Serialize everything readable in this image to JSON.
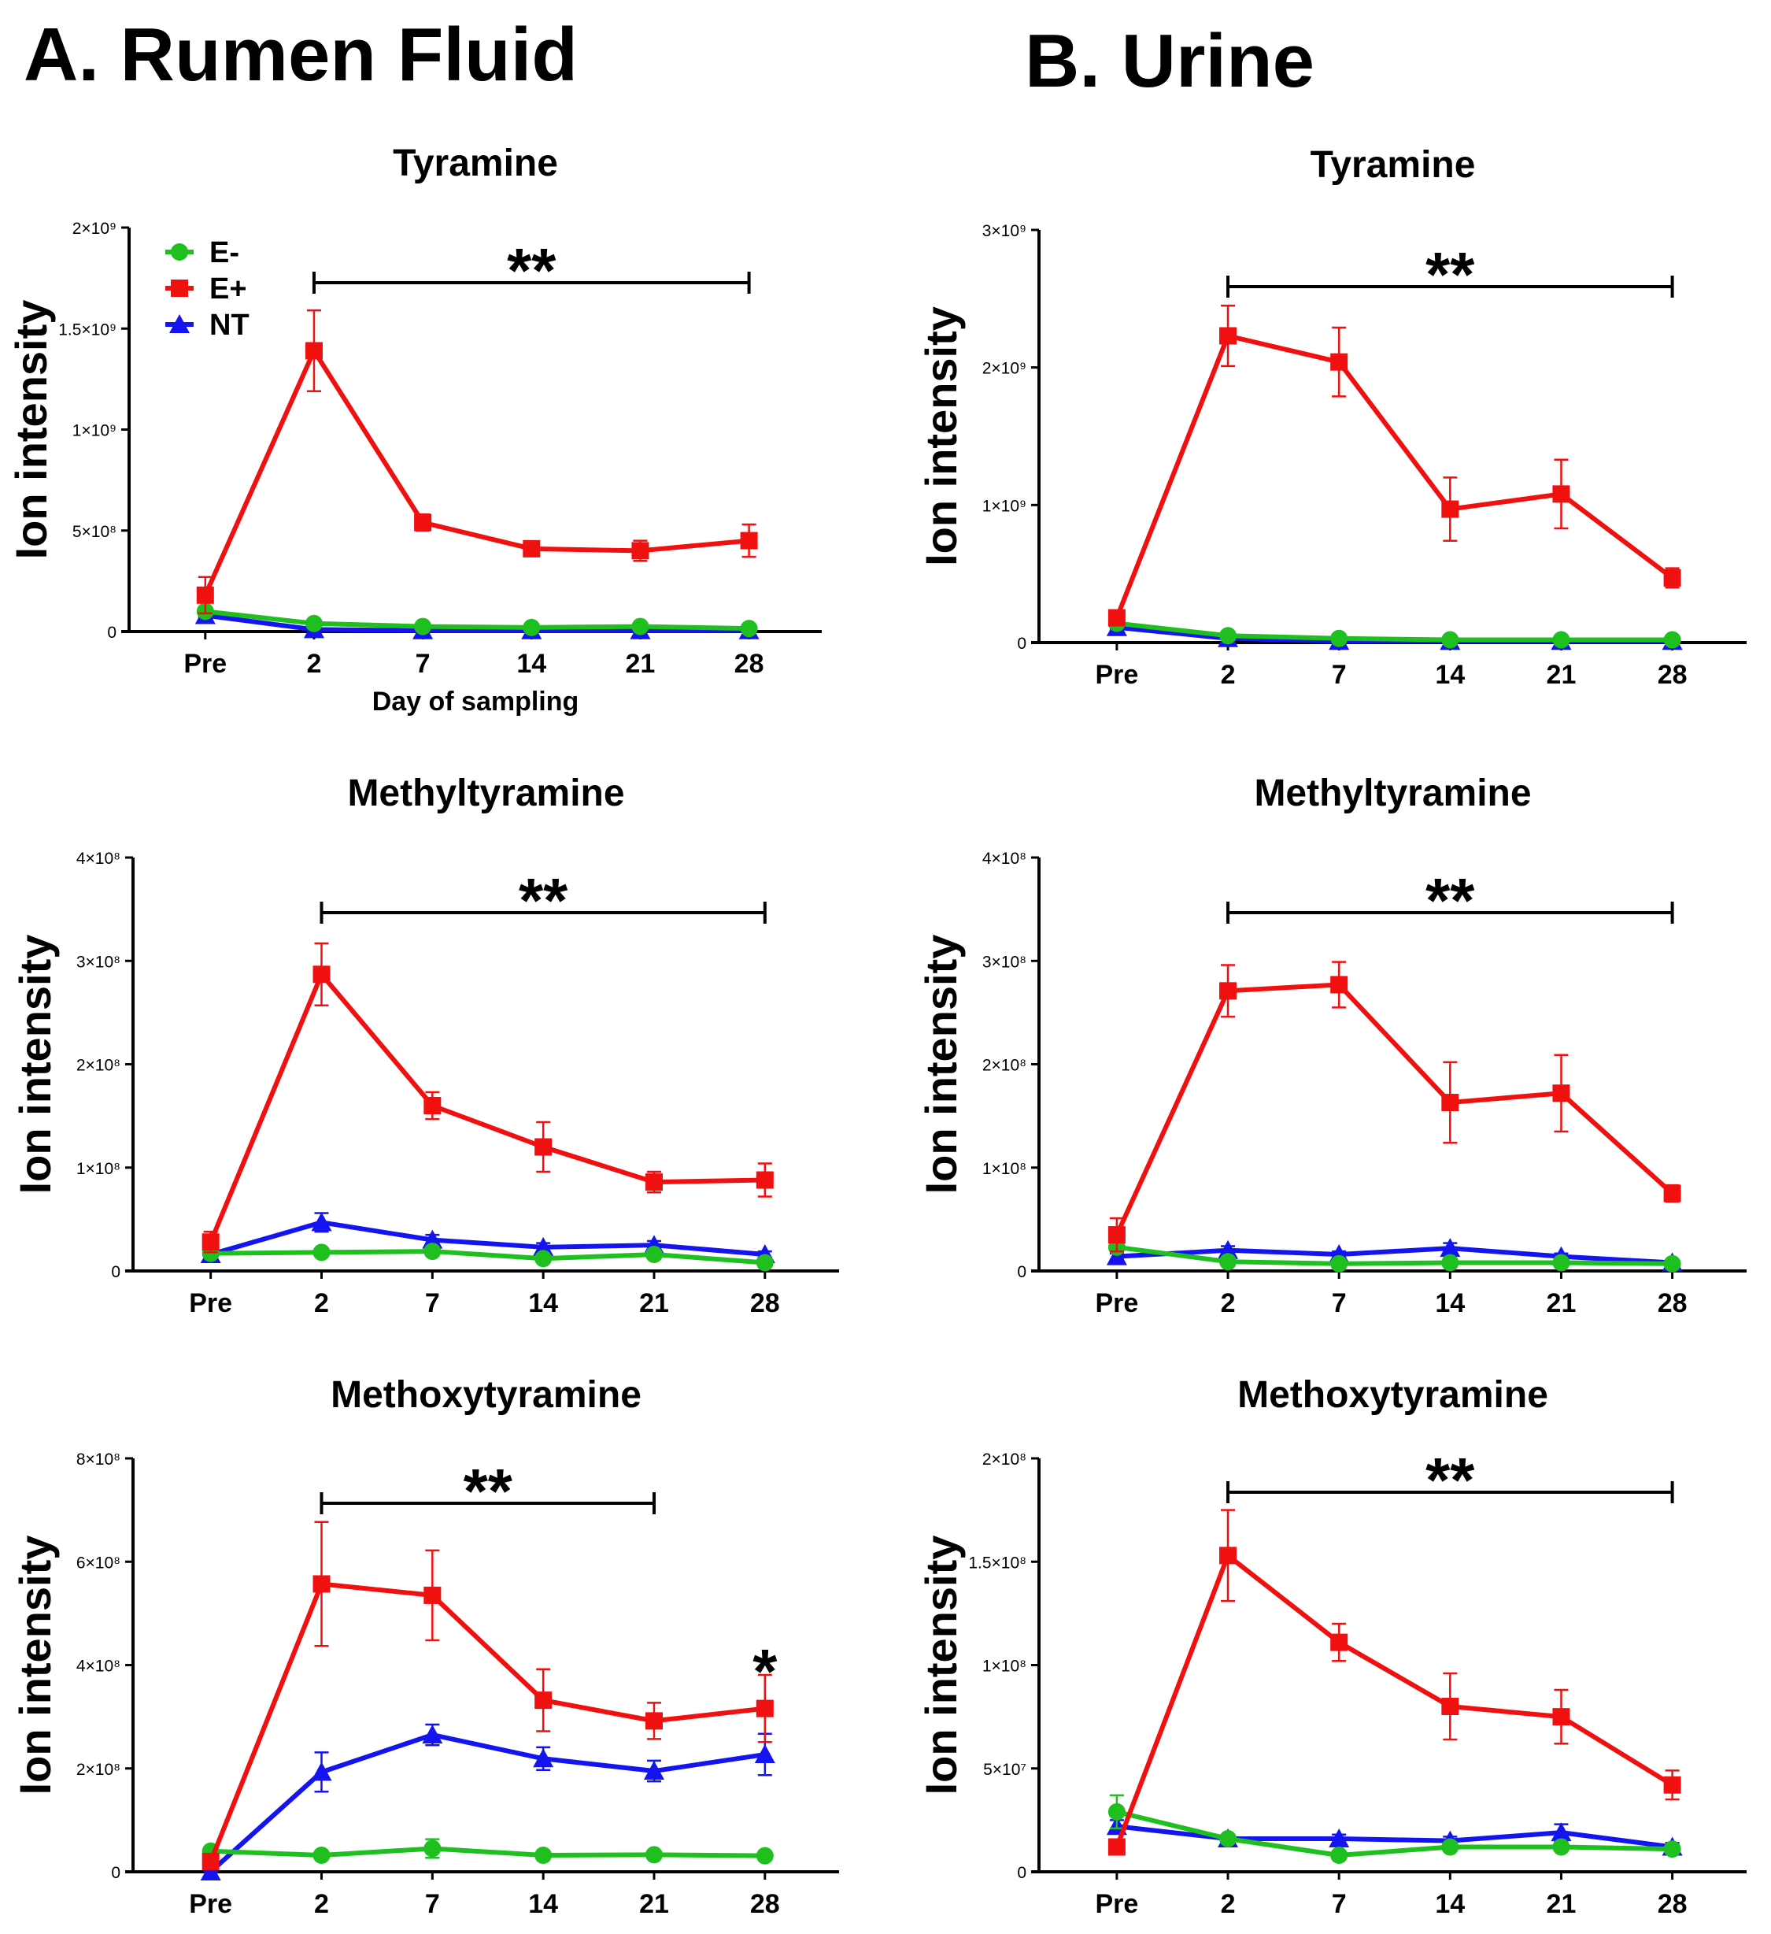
{
  "headings": {
    "a": "A. Rumen Fluid",
    "b": "B. Urine"
  },
  "legend": [
    {
      "label": "E-",
      "color": "#1fbf1f",
      "marker": "circle"
    },
    {
      "label": "E+",
      "color": "#f01010",
      "marker": "square"
    },
    {
      "label": "NT",
      "color": "#1414f0",
      "marker": "triangle"
    }
  ],
  "chart_data": [
    {
      "id": "a-tyramine",
      "type": "line",
      "title": "Tyramine",
      "xlabel": "Day of sampling",
      "ylabel": "Ion intensity",
      "categories": [
        "Pre",
        "2",
        "7",
        "14",
        "21",
        "28"
      ],
      "ylim": [
        0,
        2000000000
      ],
      "yticks": [
        0,
        500000000,
        1000000000,
        1500000000,
        2000000000
      ],
      "ytick_labels": [
        "0",
        "5×10⁸",
        "1×10⁹",
        "1.5×10⁹",
        "2×10⁹"
      ],
      "legend": "top-left",
      "series": [
        {
          "name": "NT",
          "values": [
            80000000,
            10000000,
            5000000,
            5000000,
            5000000,
            5000000
          ],
          "errors": [
            10000000,
            5000000,
            3000000,
            3000000,
            3000000,
            3000000
          ]
        },
        {
          "name": "E-",
          "values": [
            100000000,
            40000000,
            25000000,
            20000000,
            25000000,
            15000000
          ],
          "errors": [
            10000000,
            5000000,
            5000000,
            5000000,
            5000000,
            5000000
          ]
        },
        {
          "name": "E+",
          "values": [
            180000000,
            1390000000,
            540000000,
            410000000,
            400000000,
            450000000
          ],
          "errors": [
            90000000,
            200000000,
            40000000,
            30000000,
            50000000,
            80000000
          ]
        }
      ],
      "significance": [
        {
          "from": "2",
          "to": "28",
          "label": "**"
        }
      ]
    },
    {
      "id": "b-tyramine",
      "type": "line",
      "title": "Tyramine",
      "xlabel": "",
      "ylabel": "Ion intensity",
      "categories": [
        "Pre",
        "2",
        "7",
        "14",
        "21",
        "28"
      ],
      "ylim": [
        0,
        3000000000
      ],
      "yticks": [
        0,
        1000000000,
        2000000000,
        3000000000
      ],
      "ytick_labels": [
        "0",
        "1×10⁹",
        "2×10⁹",
        "3×10⁹"
      ],
      "series": [
        {
          "name": "NT",
          "values": [
            110000000,
            30000000,
            10000000,
            10000000,
            10000000,
            10000000
          ],
          "errors": [
            10000000,
            5000000,
            3000000,
            3000000,
            3000000,
            3000000
          ]
        },
        {
          "name": "E-",
          "values": [
            140000000,
            50000000,
            30000000,
            20000000,
            20000000,
            20000000
          ],
          "errors": [
            10000000,
            5000000,
            5000000,
            5000000,
            5000000,
            5000000
          ]
        },
        {
          "name": "E+",
          "values": [
            180000000,
            2230000000,
            2040000000,
            970000000,
            1080000000,
            470000000
          ],
          "errors": [
            50000000,
            220000000,
            250000000,
            230000000,
            250000000,
            70000000
          ]
        }
      ],
      "significance": [
        {
          "from": "2",
          "to": "28",
          "label": "**"
        }
      ]
    },
    {
      "id": "a-methyltyramine",
      "type": "line",
      "title": "Methyltyramine",
      "xlabel": "",
      "ylabel": "Ion intensity",
      "categories": [
        "Pre",
        "2",
        "7",
        "14",
        "21",
        "28"
      ],
      "ylim": [
        0,
        400000000
      ],
      "yticks": [
        0,
        100000000,
        200000000,
        300000000,
        400000000
      ],
      "ytick_labels": [
        "0",
        "1×10⁸",
        "2×10⁸",
        "3×10⁸",
        "4×10⁸"
      ],
      "series": [
        {
          "name": "NT",
          "values": [
            16000000,
            47000000,
            30000000,
            23000000,
            25000000,
            16000000
          ],
          "errors": [
            3000000,
            9000000,
            5000000,
            4000000,
            4000000,
            3000000
          ]
        },
        {
          "name": "E-",
          "values": [
            17000000,
            18000000,
            19000000,
            12000000,
            16000000,
            8000000
          ],
          "errors": [
            2000000,
            2000000,
            3000000,
            2000000,
            2000000,
            2000000
          ]
        },
        {
          "name": "E+",
          "values": [
            28000000,
            287000000,
            160000000,
            120000000,
            86000000,
            88000000
          ],
          "errors": [
            10000000,
            30000000,
            13000000,
            24000000,
            10000000,
            16000000
          ]
        }
      ],
      "significance": [
        {
          "from": "2",
          "to": "28",
          "label": "**"
        }
      ]
    },
    {
      "id": "b-methyltyramine",
      "type": "line",
      "title": "Methyltyramine",
      "xlabel": "",
      "ylabel": "Ion intensity",
      "categories": [
        "Pre",
        "2",
        "7",
        "14",
        "21",
        "28"
      ],
      "ylim": [
        0,
        400000000
      ],
      "yticks": [
        0,
        100000000,
        200000000,
        300000000,
        400000000
      ],
      "ytick_labels": [
        "0",
        "1×10⁸",
        "2×10⁸",
        "3×10⁸",
        "4×10⁸"
      ],
      "series": [
        {
          "name": "NT",
          "values": [
            14000000,
            20000000,
            16000000,
            22000000,
            14000000,
            8000000
          ],
          "errors": [
            3000000,
            4000000,
            3000000,
            5000000,
            3000000,
            2000000
          ]
        },
        {
          "name": "E-",
          "values": [
            23000000,
            9000000,
            7000000,
            8000000,
            8000000,
            7000000
          ],
          "errors": [
            3000000,
            2000000,
            2000000,
            2000000,
            2000000,
            2000000
          ]
        },
        {
          "name": "E+",
          "values": [
            35000000,
            271000000,
            277000000,
            163000000,
            172000000,
            75000000
          ],
          "errors": [
            16000000,
            25000000,
            22000000,
            39000000,
            37000000,
            8000000
          ]
        }
      ],
      "significance": [
        {
          "from": "2",
          "to": "28",
          "label": "**"
        }
      ]
    },
    {
      "id": "a-methoxytyramine",
      "type": "line",
      "title": "Methoxytyramine",
      "xlabel": "",
      "ylabel": "Ion intensity",
      "categories": [
        "Pre",
        "2",
        "7",
        "14",
        "21",
        "28"
      ],
      "ylim": [
        0,
        800000000
      ],
      "yticks": [
        0,
        200000000,
        400000000,
        600000000,
        800000000
      ],
      "ytick_labels": [
        "0",
        "2×10⁸",
        "4×10⁸",
        "6×10⁸",
        "8×10⁸"
      ],
      "series": [
        {
          "name": "NT",
          "values": [
            0,
            193000000,
            265000000,
            219000000,
            195000000,
            227000000
          ],
          "errors": [
            5000000,
            38000000,
            20000000,
            22000000,
            20000000,
            40000000
          ]
        },
        {
          "name": "E-",
          "values": [
            40000000,
            32000000,
            45000000,
            32000000,
            33000000,
            31000000
          ],
          "errors": [
            5000000,
            5000000,
            18000000,
            5000000,
            5000000,
            5000000
          ]
        },
        {
          "name": "E+",
          "values": [
            20000000,
            557000000,
            535000000,
            332000000,
            292000000,
            316000000
          ],
          "errors": [
            10000000,
            120000000,
            87000000,
            60000000,
            35000000,
            65000000
          ]
        }
      ],
      "significance": [
        {
          "from": "2",
          "to": "21",
          "label": "**"
        },
        {
          "from": "28",
          "to": "28",
          "label": "*"
        }
      ]
    },
    {
      "id": "b-methoxytyramine",
      "type": "line",
      "title": "Methoxytyramine",
      "xlabel": "",
      "ylabel": "Ion intensity",
      "categories": [
        "Pre",
        "2",
        "7",
        "14",
        "21",
        "28"
      ],
      "ylim": [
        0,
        200000000
      ],
      "yticks": [
        0,
        50000000,
        100000000,
        150000000,
        200000000
      ],
      "ytick_labels": [
        "0",
        "5×10⁷",
        "1×10⁸",
        "1.5×10⁸",
        "2×10⁸"
      ],
      "series": [
        {
          "name": "NT",
          "values": [
            22000000,
            16000000,
            16000000,
            15000000,
            19000000,
            12000000
          ],
          "errors": [
            3000000,
            2000000,
            2000000,
            2000000,
            4000000,
            2000000
          ]
        },
        {
          "name": "E-",
          "values": [
            29000000,
            16000000,
            8000000,
            12000000,
            12000000,
            11000000
          ],
          "errors": [
            8000000,
            2000000,
            2000000,
            2000000,
            2000000,
            2000000
          ]
        },
        {
          "name": "E+",
          "values": [
            12000000,
            153000000,
            111000000,
            80000000,
            75000000,
            42000000
          ],
          "errors": [
            2000000,
            22000000,
            9000000,
            16000000,
            13000000,
            7000000
          ]
        }
      ],
      "significance": [
        {
          "from": "2",
          "to": "28",
          "label": "**"
        }
      ]
    }
  ]
}
